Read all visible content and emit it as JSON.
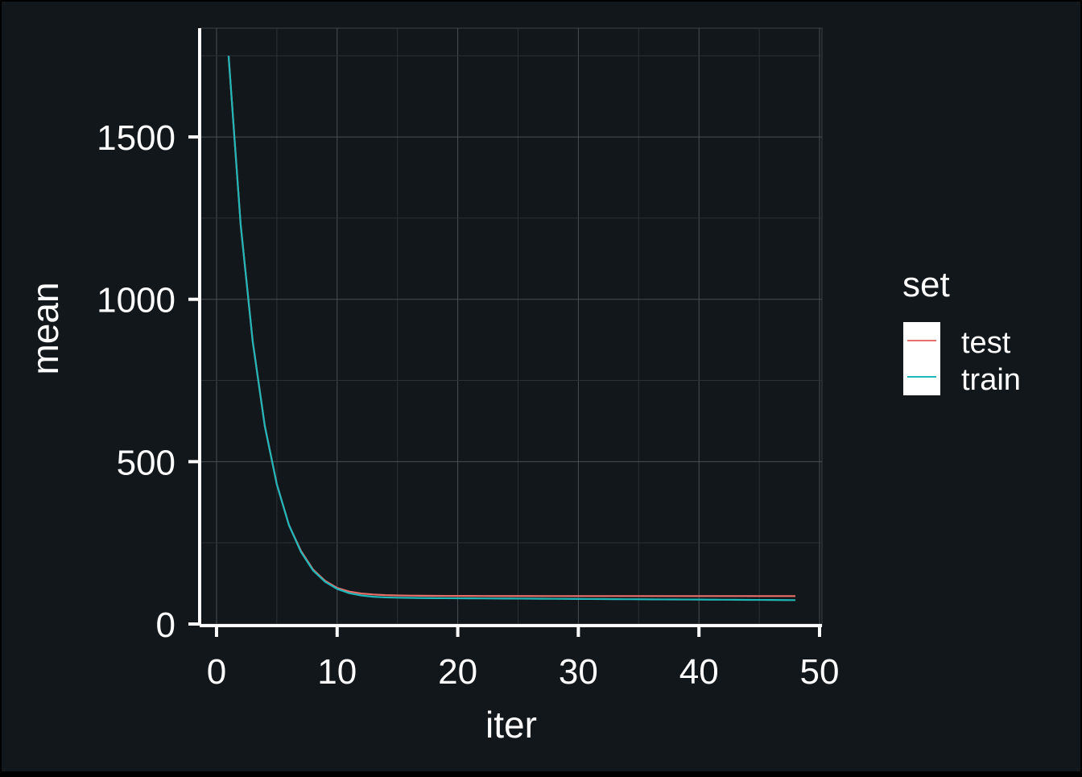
{
  "colors": {
    "background": "#12171b",
    "border": "#000000",
    "grid": "#4a4f53",
    "axis": "#ffffff",
    "text": "#ffffff",
    "legend_key_bg": "#ffffff"
  },
  "chart_data": {
    "type": "line",
    "xlabel": "iter",
    "ylabel": "mean",
    "xlim": [
      -1.4,
      50.2
    ],
    "ylim": [
      -5,
      1835
    ],
    "x_ticks": [
      0,
      10,
      20,
      30,
      40,
      50
    ],
    "y_ticks": [
      0,
      500,
      1000,
      1500
    ],
    "x_tick_labels": [
      "0",
      "10",
      "20",
      "30",
      "40",
      "50"
    ],
    "y_tick_labels": [
      "0",
      "500",
      "1000",
      "1500"
    ],
    "grid": true,
    "legend": {
      "title": "set",
      "position": "right"
    },
    "series": [
      {
        "name": "test",
        "color": "#e8706a",
        "x": [
          1,
          2,
          3,
          4,
          5,
          6,
          7,
          8,
          9,
          10,
          11,
          12,
          13,
          14,
          15,
          16,
          17,
          18,
          19,
          20,
          21,
          22,
          23,
          24,
          25,
          26,
          27,
          28,
          29,
          30,
          31,
          32,
          33,
          34,
          35,
          36,
          37,
          38,
          39,
          40,
          41,
          42,
          43,
          44,
          45,
          46,
          47,
          48
        ],
        "values": [
          1750,
          1230,
          870,
          610,
          430,
          305,
          225,
          168,
          133,
          111,
          100,
          94,
          91,
          89,
          88,
          87.5,
          87,
          86.8,
          86.6,
          86.5,
          86.4,
          86.3,
          86.2,
          86.2,
          86.1,
          86.1,
          86,
          86,
          86,
          86,
          86,
          86,
          86,
          86,
          86,
          86,
          86,
          86,
          86,
          86,
          86,
          86,
          86,
          86,
          86,
          86,
          86,
          86
        ]
      },
      {
        "name": "train",
        "color": "#1fb7b9",
        "x": [
          1,
          2,
          3,
          4,
          5,
          6,
          7,
          8,
          9,
          10,
          11,
          12,
          13,
          14,
          15,
          16,
          17,
          18,
          19,
          20,
          21,
          22,
          23,
          24,
          25,
          26,
          27,
          28,
          29,
          30,
          31,
          32,
          33,
          34,
          35,
          36,
          37,
          38,
          39,
          40,
          41,
          42,
          43,
          44,
          45,
          46,
          47,
          48
        ],
        "values": [
          1750,
          1230,
          870,
          610,
          430,
          305,
          222,
          165,
          130,
          108,
          95,
          88,
          84,
          82,
          81,
          80.5,
          80,
          79.7,
          79.4,
          79.2,
          79,
          78.8,
          78.6,
          78.4,
          78.2,
          78,
          77.8,
          77.6,
          77.4,
          77.2,
          77,
          76.8,
          76.6,
          76.4,
          76.2,
          76,
          75.8,
          75.6,
          75.4,
          75.2,
          75,
          74.8,
          74.6,
          74.4,
          74.2,
          74,
          73.8,
          73.6
        ]
      }
    ]
  }
}
